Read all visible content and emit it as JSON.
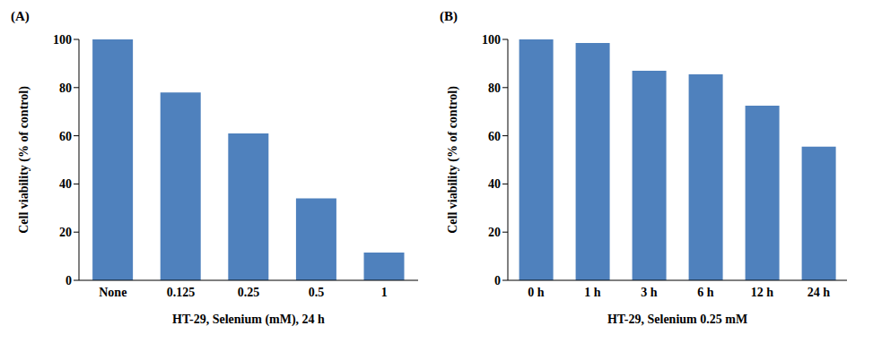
{
  "chart_data": [
    {
      "type": "bar",
      "title": "(A)",
      "x_label": "HT-29, Selenium (mM), 24 h",
      "y_label": "Cell viability (% of control)",
      "categories": [
        "None",
        "0.125",
        "0.25",
        "0.5",
        "1"
      ],
      "values": [
        100,
        78,
        61,
        34,
        11.5
      ],
      "color": "#4f81bd",
      "ylim": [
        0,
        100
      ],
      "yticks": [
        0,
        20,
        40,
        60,
        80,
        100
      ],
      "grid": false
    },
    {
      "type": "bar",
      "title": "(B)",
      "x_label": "HT-29, Selenium 0.25 mM",
      "y_label": "Cell viability (% of control)",
      "categories": [
        "0 h",
        "1 h",
        "3 h",
        "6 h",
        "12 h",
        "24 h"
      ],
      "values": [
        100,
        98.5,
        87,
        85.5,
        72.5,
        55.5
      ],
      "color": "#4f81bd",
      "ylim": [
        0,
        100
      ],
      "yticks": [
        0,
        20,
        40,
        60,
        80,
        100
      ],
      "grid": false
    }
  ]
}
